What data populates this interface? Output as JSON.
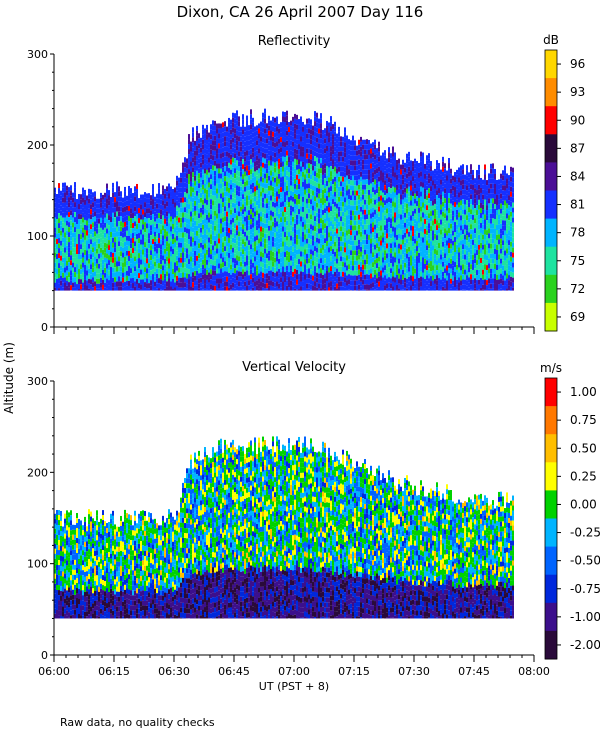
{
  "title": "Dixon, CA 26 April 2007  Day 116",
  "y_axis_label": "Altitude (m)",
  "footnote": "Raw data, no quality checks",
  "chart_data": [
    {
      "type": "heatmap",
      "title": "Reflectivity",
      "xlabel": "UT  (PST + 8)",
      "ylabel": "Altitude (m)",
      "x_ticks": [
        "06:00",
        "06:15",
        "06:30",
        "06:45",
        "07:00",
        "07:15",
        "07:30",
        "07:45",
        "08:00"
      ],
      "xlim": [
        "06:00",
        "08:00"
      ],
      "y_ticks": [
        0,
        100,
        200,
        300
      ],
      "ylim": [
        0,
        300
      ],
      "colorbar_unit": "dB",
      "colorbar_labels": [
        "96",
        "93",
        "90",
        "87",
        "84",
        "81",
        "78",
        "75",
        "72",
        "69"
      ],
      "colorbar_colors": [
        "#ffd700",
        "#ff8c00",
        "#ff0000",
        "#2a0a3a",
        "#4b0f96",
        "#1530ff",
        "#00b4ff",
        "#1ee3a0",
        "#2ad21e",
        "#c8ff00"
      ],
      "data_range": {
        "altitude_min": 40,
        "altitude_max": 240
      },
      "cloud_top_profile": [
        {
          "time": "06:00",
          "top": 160
        },
        {
          "time": "06:30",
          "top": 160
        },
        {
          "time": "06:34",
          "top": 220
        },
        {
          "time": "06:42",
          "top": 240
        },
        {
          "time": "07:05",
          "top": 240
        },
        {
          "time": "07:25",
          "top": 200
        },
        {
          "time": "07:45",
          "top": 180
        },
        {
          "time": "07:55",
          "top": 180
        }
      ]
    },
    {
      "type": "heatmap",
      "title": "Vertical Velocity",
      "xlabel": "UT  (PST + 8)",
      "ylabel": "Altitude (m)",
      "x_ticks": [
        "06:00",
        "06:15",
        "06:30",
        "06:45",
        "07:00",
        "07:15",
        "07:30",
        "07:45",
        "08:00"
      ],
      "xlim": [
        "06:00",
        "08:00"
      ],
      "y_ticks": [
        0,
        100,
        200,
        300
      ],
      "ylim": [
        0,
        300
      ],
      "colorbar_unit": "m/s",
      "colorbar_labels": [
        "1.00",
        "0.75",
        "0.50",
        "0.25",
        "0.00",
        "-0.25",
        "-0.50",
        "-0.75",
        "-1.00",
        "-2.00"
      ],
      "colorbar_colors": [
        "#ff0000",
        "#ff7800",
        "#ffbe00",
        "#ffff00",
        "#00d200",
        "#00b4ff",
        "#0064ff",
        "#0028dc",
        "#3c0f8c",
        "#2a0a3a"
      ],
      "data_range": {
        "altitude_min": 40,
        "altitude_max": 240
      },
      "cloud_top_profile": [
        {
          "time": "06:00",
          "top": 160
        },
        {
          "time": "06:30",
          "top": 160
        },
        {
          "time": "06:34",
          "top": 220
        },
        {
          "time": "06:42",
          "top": 240
        },
        {
          "time": "07:05",
          "top": 240
        },
        {
          "time": "07:25",
          "top": 200
        },
        {
          "time": "07:45",
          "top": 180
        },
        {
          "time": "07:55",
          "top": 180
        }
      ]
    }
  ]
}
